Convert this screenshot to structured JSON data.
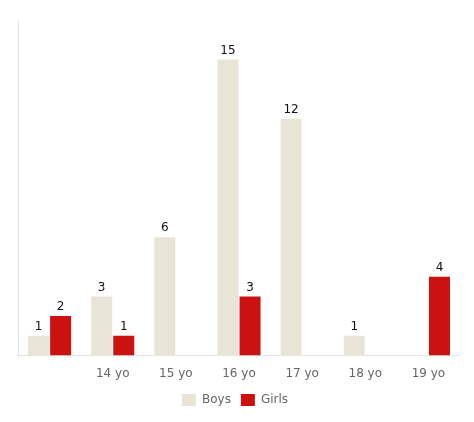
{
  "chart_data": {
    "type": "bar",
    "categories": [
      null,
      "14 yo",
      "15 yo",
      "16 yo",
      "17 yo",
      "18 yo",
      "19 yo"
    ],
    "series": [
      {
        "name": "Boys",
        "color": "#e8e5d7",
        "values": [
          1,
          3,
          6,
          15,
          12,
          1,
          0
        ]
      },
      {
        "name": "Girls",
        "color": "#cc1111",
        "values": [
          2,
          1,
          0,
          3,
          0,
          0,
          4
        ]
      }
    ],
    "ylim": [
      0,
      17
    ],
    "grid": false,
    "legend": "bottom",
    "data_labels": true,
    "tick_labels": "x"
  }
}
